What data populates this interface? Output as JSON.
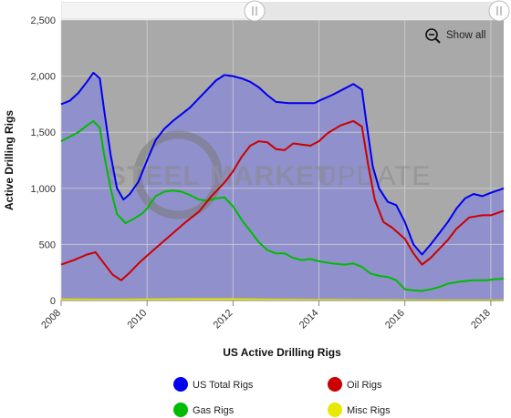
{
  "chart_data": {
    "type": "area",
    "xlabel": "US Active Drilling Rigs",
    "ylabel": "Active Drilling Rigs",
    "xlim": [
      2008,
      2018.3
    ],
    "ylim": [
      0,
      2500
    ],
    "x_ticks": [
      "2008",
      "2010",
      "2012",
      "2014",
      "2016",
      "2018"
    ],
    "y_ticks": [
      "0",
      "500",
      "1,000",
      "1,500",
      "2,000",
      "2,500"
    ],
    "grid": true,
    "legend": "bottom",
    "series": [
      {
        "name": "US Total Rigs",
        "color": "#0000ee",
        "points": [
          [
            2008.0,
            1750
          ],
          [
            2008.2,
            1780
          ],
          [
            2008.4,
            1850
          ],
          [
            2008.6,
            1950
          ],
          [
            2008.75,
            2030
          ],
          [
            2008.9,
            1980
          ],
          [
            2009.0,
            1700
          ],
          [
            2009.15,
            1300
          ],
          [
            2009.3,
            1000
          ],
          [
            2009.45,
            900
          ],
          [
            2009.6,
            950
          ],
          [
            2009.8,
            1060
          ],
          [
            2010.0,
            1250
          ],
          [
            2010.2,
            1430
          ],
          [
            2010.4,
            1530
          ],
          [
            2010.6,
            1600
          ],
          [
            2010.8,
            1660
          ],
          [
            2011.0,
            1720
          ],
          [
            2011.2,
            1800
          ],
          [
            2011.4,
            1880
          ],
          [
            2011.6,
            1960
          ],
          [
            2011.8,
            2010
          ],
          [
            2012.0,
            2000
          ],
          [
            2012.2,
            1980
          ],
          [
            2012.4,
            1950
          ],
          [
            2012.6,
            1900
          ],
          [
            2012.8,
            1830
          ],
          [
            2013.0,
            1770
          ],
          [
            2013.3,
            1760
          ],
          [
            2013.6,
            1760
          ],
          [
            2013.9,
            1760
          ],
          [
            2014.0,
            1780
          ],
          [
            2014.3,
            1830
          ],
          [
            2014.6,
            1890
          ],
          [
            2014.8,
            1930
          ],
          [
            2015.0,
            1880
          ],
          [
            2015.1,
            1600
          ],
          [
            2015.25,
            1200
          ],
          [
            2015.4,
            1000
          ],
          [
            2015.6,
            880
          ],
          [
            2015.8,
            850
          ],
          [
            2016.0,
            700
          ],
          [
            2016.2,
            500
          ],
          [
            2016.4,
            410
          ],
          [
            2016.6,
            500
          ],
          [
            2016.8,
            600
          ],
          [
            2017.0,
            700
          ],
          [
            2017.2,
            820
          ],
          [
            2017.4,
            910
          ],
          [
            2017.6,
            950
          ],
          [
            2017.8,
            930
          ],
          [
            2018.0,
            960
          ],
          [
            2018.3,
            1000
          ]
        ]
      },
      {
        "name": "Oil Rigs",
        "color": "#cc0000",
        "points": [
          [
            2008.0,
            320
          ],
          [
            2008.3,
            360
          ],
          [
            2008.6,
            410
          ],
          [
            2008.8,
            430
          ],
          [
            2009.0,
            330
          ],
          [
            2009.2,
            230
          ],
          [
            2009.4,
            180
          ],
          [
            2009.6,
            250
          ],
          [
            2009.8,
            330
          ],
          [
            2010.0,
            400
          ],
          [
            2010.3,
            500
          ],
          [
            2010.6,
            600
          ],
          [
            2010.9,
            700
          ],
          [
            2011.2,
            790
          ],
          [
            2011.5,
            930
          ],
          [
            2011.8,
            1050
          ],
          [
            2012.0,
            1150
          ],
          [
            2012.2,
            1280
          ],
          [
            2012.4,
            1380
          ],
          [
            2012.6,
            1420
          ],
          [
            2012.8,
            1410
          ],
          [
            2013.0,
            1350
          ],
          [
            2013.2,
            1340
          ],
          [
            2013.4,
            1400
          ],
          [
            2013.6,
            1390
          ],
          [
            2013.8,
            1380
          ],
          [
            2014.0,
            1420
          ],
          [
            2014.2,
            1490
          ],
          [
            2014.5,
            1560
          ],
          [
            2014.8,
            1600
          ],
          [
            2015.0,
            1550
          ],
          [
            2015.15,
            1200
          ],
          [
            2015.3,
            900
          ],
          [
            2015.5,
            700
          ],
          [
            2015.7,
            650
          ],
          [
            2016.0,
            550
          ],
          [
            2016.2,
            420
          ],
          [
            2016.4,
            320
          ],
          [
            2016.6,
            380
          ],
          [
            2016.8,
            460
          ],
          [
            2017.0,
            540
          ],
          [
            2017.2,
            640
          ],
          [
            2017.5,
            740
          ],
          [
            2017.8,
            760
          ],
          [
            2018.0,
            760
          ],
          [
            2018.3,
            800
          ]
        ]
      },
      {
        "name": "Gas Rigs",
        "color": "#00bb00",
        "points": [
          [
            2008.0,
            1420
          ],
          [
            2008.2,
            1460
          ],
          [
            2008.4,
            1500
          ],
          [
            2008.6,
            1560
          ],
          [
            2008.75,
            1600
          ],
          [
            2008.9,
            1540
          ],
          [
            2009.0,
            1300
          ],
          [
            2009.15,
            1000
          ],
          [
            2009.3,
            770
          ],
          [
            2009.5,
            690
          ],
          [
            2009.7,
            730
          ],
          [
            2009.9,
            780
          ],
          [
            2010.0,
            820
          ],
          [
            2010.2,
            930
          ],
          [
            2010.4,
            970
          ],
          [
            2010.6,
            980
          ],
          [
            2010.8,
            970
          ],
          [
            2011.0,
            940
          ],
          [
            2011.2,
            900
          ],
          [
            2011.4,
            890
          ],
          [
            2011.6,
            910
          ],
          [
            2011.8,
            920
          ],
          [
            2012.0,
            840
          ],
          [
            2012.2,
            720
          ],
          [
            2012.4,
            620
          ],
          [
            2012.6,
            520
          ],
          [
            2012.8,
            450
          ],
          [
            2013.0,
            420
          ],
          [
            2013.2,
            420
          ],
          [
            2013.4,
            380
          ],
          [
            2013.6,
            360
          ],
          [
            2013.8,
            370
          ],
          [
            2014.0,
            350
          ],
          [
            2014.3,
            330
          ],
          [
            2014.6,
            320
          ],
          [
            2014.8,
            330
          ],
          [
            2015.0,
            300
          ],
          [
            2015.2,
            240
          ],
          [
            2015.4,
            220
          ],
          [
            2015.6,
            210
          ],
          [
            2015.8,
            180
          ],
          [
            2016.0,
            100
          ],
          [
            2016.2,
            90
          ],
          [
            2016.4,
            85
          ],
          [
            2016.6,
            100
          ],
          [
            2016.8,
            120
          ],
          [
            2017.0,
            150
          ],
          [
            2017.3,
            170
          ],
          [
            2017.6,
            180
          ],
          [
            2017.9,
            180
          ],
          [
            2018.1,
            190
          ],
          [
            2018.3,
            195
          ]
        ]
      },
      {
        "name": "Misc Rigs",
        "color": "#e8e800",
        "points": [
          [
            2008.0,
            10
          ],
          [
            2009.0,
            8
          ],
          [
            2010.0,
            10
          ],
          [
            2011.0,
            12
          ],
          [
            2012.0,
            12
          ],
          [
            2013.0,
            8
          ],
          [
            2014.0,
            6
          ],
          [
            2015.0,
            5
          ],
          [
            2016.0,
            3
          ],
          [
            2017.0,
            2
          ],
          [
            2018.0,
            2
          ],
          [
            2018.3,
            2
          ]
        ]
      }
    ]
  },
  "toolbar": {
    "show_all_label": "Show all"
  },
  "watermark": {
    "text_a": "STEEL",
    "text_b": "MARKET",
    "text_c": "UPDATE"
  },
  "colors": {
    "plot_background": "#a9a9a9",
    "area_fill": "#9090cc",
    "navigator": "#e6e6e6"
  }
}
